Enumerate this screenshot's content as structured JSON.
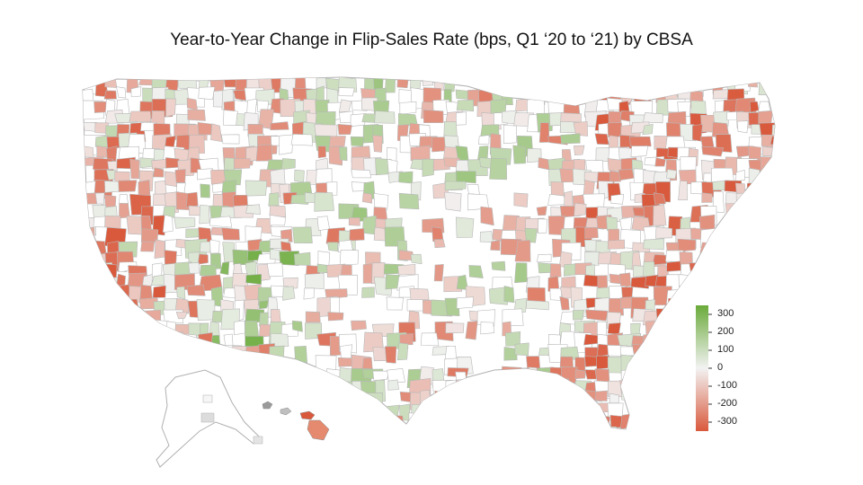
{
  "title": "Year-to-Year Change in Flip-Sales Rate (bps, Q1 ‘20 to ‘21) by CBSA",
  "legend": {
    "ticks": [
      "300",
      "200",
      "100",
      "0",
      "-100",
      "-200",
      "-300"
    ],
    "colors": {
      "high": "#6aaa3a",
      "mid": "#f2f2f2",
      "low": "#d9593c"
    },
    "range": [
      -300,
      300
    ]
  },
  "colors": {
    "border": "#b8b8b8",
    "no_data": "#ffffff"
  }
}
